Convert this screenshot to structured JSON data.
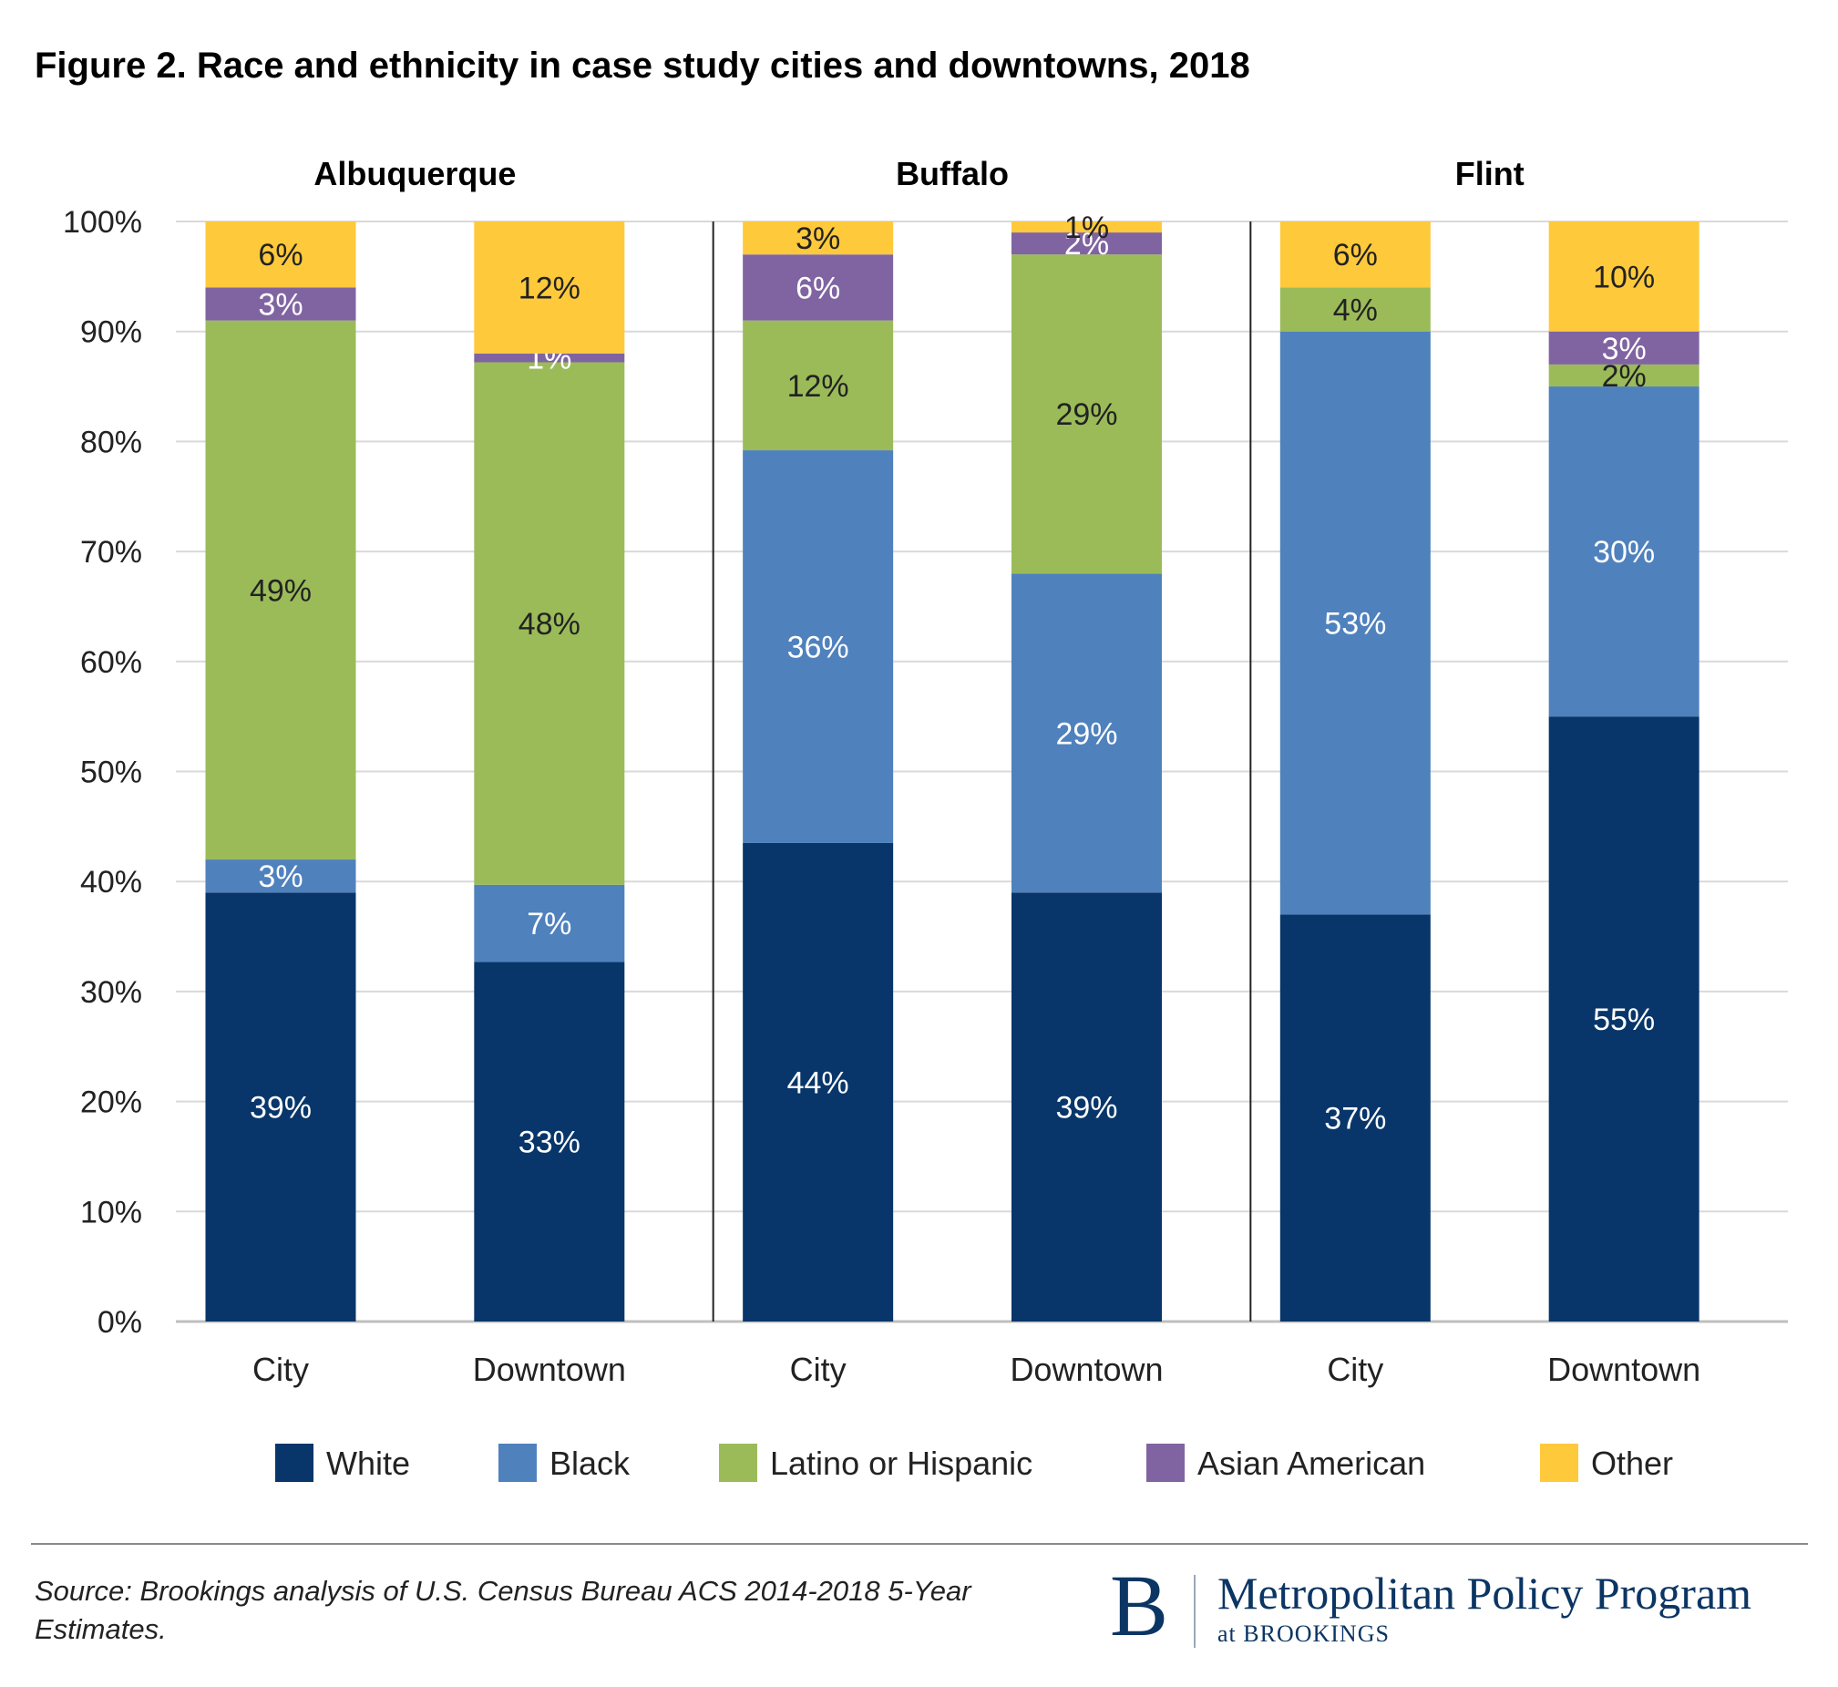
{
  "title": "Figure 2. Race and ethnicity in case study cities and downtowns, 2018",
  "source": "Source: Brookings analysis of U.S. Census Bureau ACS 2014-2018 5-Year Estimates.",
  "logo": {
    "mark": "B",
    "name": "Metropolitan Policy Program",
    "sub": "at BROOKINGS"
  },
  "chart_data": {
    "type": "bar",
    "stacked": true,
    "ylim": [
      0,
      100
    ],
    "yticks": [
      "0%",
      "10%",
      "20%",
      "30%",
      "40%",
      "50%",
      "60%",
      "70%",
      "80%",
      "90%",
      "100%"
    ],
    "grid": true,
    "legend_position": "bottom",
    "groups": [
      {
        "name": "Albuquerque",
        "categories": [
          "City",
          "Downtown"
        ]
      },
      {
        "name": "Buffalo",
        "categories": [
          "City",
          "Downtown"
        ]
      },
      {
        "name": "Flint",
        "categories": [
          "City",
          "Downtown"
        ]
      }
    ],
    "series": [
      {
        "name": "White",
        "color": "#08366a",
        "label_color": "#ffffff",
        "values": [
          39,
          32.7,
          43.5,
          39,
          37,
          55
        ],
        "labels": [
          "39%",
          "33%",
          "44%",
          "39%",
          "37%",
          "55%"
        ]
      },
      {
        "name": "Black",
        "color": "#4f81bd",
        "label_color": "#ffffff",
        "values": [
          3,
          7,
          35.7,
          29,
          53,
          30
        ],
        "labels": [
          "3%",
          "7%",
          "36%",
          "29%",
          "53%",
          "30%"
        ]
      },
      {
        "name": "Latino or Hispanic",
        "color": "#9bbb59",
        "label_color": "#222222",
        "values": [
          49,
          47.5,
          11.8,
          29,
          4,
          2
        ],
        "labels": [
          "49%",
          "48%",
          "12%",
          "29%",
          "4%",
          "2%"
        ]
      },
      {
        "name": "Asian American",
        "color": "#8064a2",
        "label_color": "#ffffff",
        "values": [
          3,
          0.8,
          6,
          2,
          0,
          3
        ],
        "labels": [
          "3%",
          "1%",
          "6%",
          "2%",
          "",
          "3%"
        ]
      },
      {
        "name": "Other",
        "color": "#ffc93c",
        "label_color": "#222222",
        "values": [
          6,
          12,
          3,
          1,
          6,
          10
        ],
        "labels": [
          "6%",
          "12%",
          "3%",
          "1%",
          "6%",
          "10%"
        ]
      }
    ]
  }
}
